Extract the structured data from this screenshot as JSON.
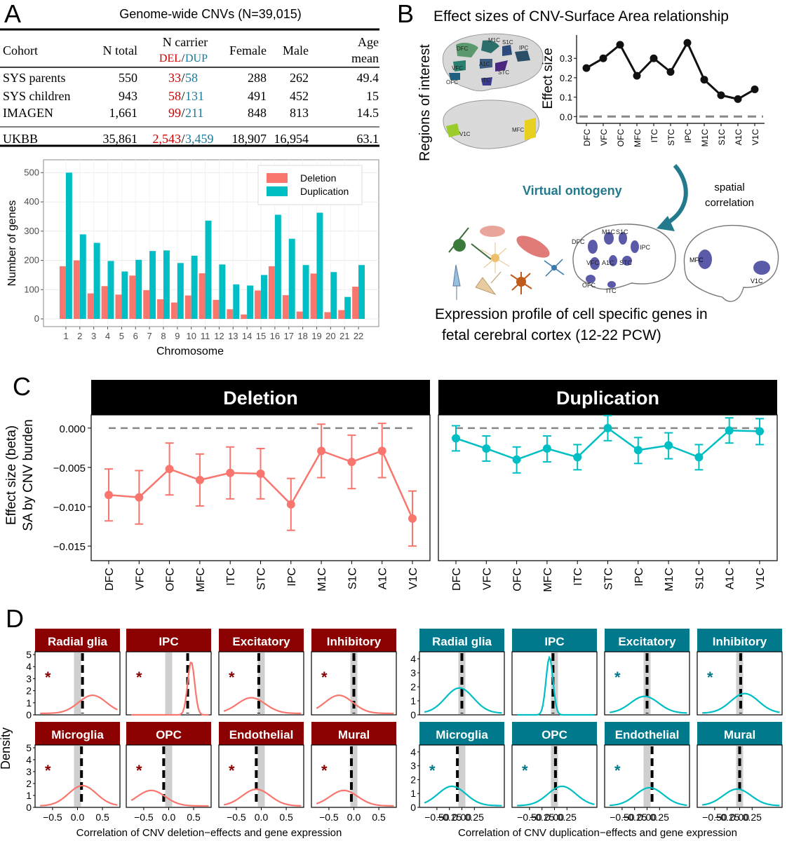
{
  "colors": {
    "del": "#f8766d",
    "dup": "#00bfc4",
    "del_strip": "#8b0000",
    "dup_strip": "#00798c",
    "del_text": "#cc0000",
    "dup_text": "#1a7a9a",
    "arrow": "#237a8c",
    "region_blue": "#5a5aa8"
  },
  "panel_labels": {
    "a": "A",
    "b": "B",
    "c": "C",
    "d": "D"
  },
  "table": {
    "title": "Genome-wide CNVs (N=39,015)",
    "headers": {
      "cohort": "Cohort",
      "n_total": "N total",
      "n_carrier": "N carrier",
      "del": "DEL",
      "slash": "/",
      "dup": "DUP",
      "female": "Female",
      "male": "Male",
      "age1": "Age",
      "age2": "mean"
    },
    "rows": [
      {
        "cohort": "SYS parents",
        "n_total": "550",
        "del": "33",
        "dup": "58",
        "female": "288",
        "male": "262",
        "age": "49.4"
      },
      {
        "cohort": "SYS children",
        "n_total": "943",
        "del": "58",
        "dup": "131",
        "female": "491",
        "male": "452",
        "age": "15"
      },
      {
        "cohort": "IMAGEN",
        "n_total": "1,661",
        "del": "99",
        "dup": "211",
        "female": "848",
        "male": "813",
        "age": "14.5"
      },
      {
        "cohort": "UKBB",
        "n_total": "35,861",
        "del": "2,543",
        "dup": "3,459",
        "female": "18,907",
        "male": "16,954",
        "age": "63.1"
      }
    ]
  },
  "panel_b": {
    "title": "Effect sizes of  CNV-Surface Area relationship",
    "roi_label": "Regions of interest",
    "brain_regions_lateral": [
      "DFC",
      "M1C",
      "S1C",
      "IPC",
      "VFC",
      "A1C",
      "STC",
      "OFC",
      "ITC"
    ],
    "brain_regions_medial": [
      "V1C",
      "MFC"
    ],
    "virtual_ontogeny": "Virtual ontogeny",
    "spatial_correlation_1": "spatial",
    "spatial_correlation_2": "correlation",
    "expression_1": "Expression profile of cell specific genes in",
    "expression_2": "fetal cerebral cortex (12-22 PCW)"
  },
  "chart_data": [
    {
      "type": "bar",
      "id": "genes_per_chromosome",
      "title": "",
      "xlabel": "Chromosome",
      "ylabel": "Number of genes",
      "categories": [
        "1",
        "2",
        "3",
        "4",
        "5",
        "6",
        "7",
        "8",
        "9",
        "10",
        "11",
        "12",
        "13",
        "14",
        "15",
        "16",
        "17",
        "18",
        "19",
        "20",
        "21",
        "22"
      ],
      "series": [
        {
          "name": "Deletion",
          "values": [
            180,
            200,
            87,
            112,
            83,
            148,
            98,
            67,
            56,
            80,
            156,
            65,
            33,
            15,
            97,
            180,
            81,
            25,
            155,
            23,
            30,
            110
          ]
        },
        {
          "name": "Duplication",
          "values": [
            500,
            289,
            260,
            198,
            162,
            202,
            232,
            234,
            191,
            216,
            336,
            186,
            118,
            114,
            150,
            356,
            274,
            184,
            363,
            160,
            75,
            184
          ]
        }
      ],
      "ylim": [
        0,
        520
      ],
      "yticks": [
        0,
        100,
        200,
        300,
        400,
        500
      ],
      "legend": "top-right"
    },
    {
      "type": "line",
      "id": "effect_size_sa",
      "categories": [
        "DFC",
        "VFC",
        "OFC",
        "MFC",
        "ITC",
        "STC",
        "IPC",
        "M1C",
        "S1C",
        "A1C",
        "V1C"
      ],
      "values": [
        0.25,
        0.3,
        0.37,
        0.21,
        0.3,
        0.23,
        0.38,
        0.19,
        0.11,
        0.09,
        0.14
      ],
      "ylabel": "Effect size",
      "ylim": [
        0,
        0.4
      ],
      "yticks": [
        "0.0",
        "0.1",
        "0.2",
        "0.3"
      ],
      "reference_line": 0
    },
    {
      "type": "line",
      "id": "beta_sa_cnv_burden",
      "ylabel_1": "Effect size (beta)",
      "ylabel_2": "SA by CNV burden",
      "categories": [
        "DFC",
        "VFC",
        "OFC",
        "MFC",
        "ITC",
        "STC",
        "IPC",
        "M1C",
        "S1C",
        "A1C",
        "V1C"
      ],
      "ylim": [
        -0.0165,
        0.0015
      ],
      "yticks": [
        "0.000",
        "−0.005",
        "−0.010",
        "−0.015"
      ],
      "facets": [
        {
          "name": "Deletion",
          "values": [
            -0.0085,
            -0.0088,
            -0.0052,
            -0.0066,
            -0.0057,
            -0.0058,
            -0.0097,
            -0.0029,
            -0.0043,
            -0.0029,
            -0.0115
          ],
          "lower": [
            -0.0118,
            -0.0122,
            -0.0085,
            -0.0099,
            -0.009,
            -0.009,
            -0.013,
            -0.0063,
            -0.0077,
            -0.0063,
            -0.015
          ],
          "upper": [
            -0.0052,
            -0.0054,
            -0.0019,
            -0.0033,
            -0.0024,
            -0.0026,
            -0.0064,
            0.0005,
            -0.0009,
            0.0006,
            -0.008
          ],
          "null": [
            0.0,
            0.0,
            0.0,
            0.0,
            0.0,
            0.0,
            0.0,
            0.0,
            0.0,
            0.0,
            0.0
          ]
        },
        {
          "name": "Duplication",
          "values": [
            -0.0013,
            -0.0026,
            -0.004,
            -0.0026,
            -0.0037,
            0.0,
            -0.0028,
            -0.0022,
            -0.0037,
            -0.0003,
            -0.0004
          ],
          "lower": [
            -0.0029,
            -0.0042,
            -0.0057,
            -0.0043,
            -0.0053,
            -0.0016,
            -0.0045,
            -0.0039,
            -0.0053,
            -0.0019,
            -0.0021
          ],
          "upper": [
            0.0003,
            -0.001,
            -0.0024,
            -0.001,
            -0.0021,
            0.0016,
            -0.0012,
            -0.0006,
            -0.0021,
            0.0013,
            0.0012
          ],
          "null": [
            0.0,
            0.0,
            0.0,
            0.0,
            0.0,
            0.0,
            0.0,
            0.0,
            0.0,
            0.0,
            0.0
          ]
        }
      ]
    },
    {
      "type": "area",
      "id": "density_null_distributions",
      "ylabel": "Density",
      "xlabel_del": "Correlation of CNV deletion−effects and gene expression",
      "xlabel_dup": "Correlation of CNV duplication−effects and gene expression",
      "xticks": [
        "−0.5",
        "0.0",
        "0.5"
      ],
      "xticks_dup": [
        "−0.50",
        "−0.25",
        "0.00",
        "0.25"
      ],
      "yticks_del": [
        "0",
        "1",
        "2",
        "3",
        "4",
        "5"
      ],
      "yticks_dup": [
        "0",
        "1",
        "2",
        "3",
        "4"
      ],
      "cell_types": [
        "Radial glia",
        "IPC",
        "Excitatory",
        "Inhibitory",
        "Microglia",
        "OPC",
        "Endothelial",
        "Mural"
      ],
      "deletion": {
        "observed": [
          0.1,
          0.38,
          -0.05,
          0.0,
          0.08,
          -0.1,
          -0.1,
          -0.05
        ],
        "significant": [
          true,
          true,
          true,
          true,
          true,
          true,
          true,
          true
        ],
        "peak_x": [
          0.3,
          0.45,
          -0.2,
          -0.3,
          0.1,
          -0.35,
          -0.1,
          -0.2
        ],
        "peak_density": [
          1.5,
          4.4,
          1.3,
          1.5,
          1.7,
          1.3,
          1.4,
          1.3
        ]
      },
      "duplication": {
        "observed": [
          0.0,
          -0.03,
          0.0,
          0.02,
          -0.09,
          0.02,
          0.1,
          0.0
        ],
        "significant": [
          false,
          false,
          true,
          true,
          true,
          true,
          true,
          false
        ],
        "peak_x": [
          -0.05,
          -0.1,
          -0.05,
          0.1,
          -0.2,
          0.15,
          0.05,
          -0.05
        ],
        "peak_density": [
          1.8,
          4.1,
          1.2,
          1.4,
          1.4,
          1.4,
          1.3,
          1.2
        ]
      }
    }
  ],
  "asterisk": "*"
}
